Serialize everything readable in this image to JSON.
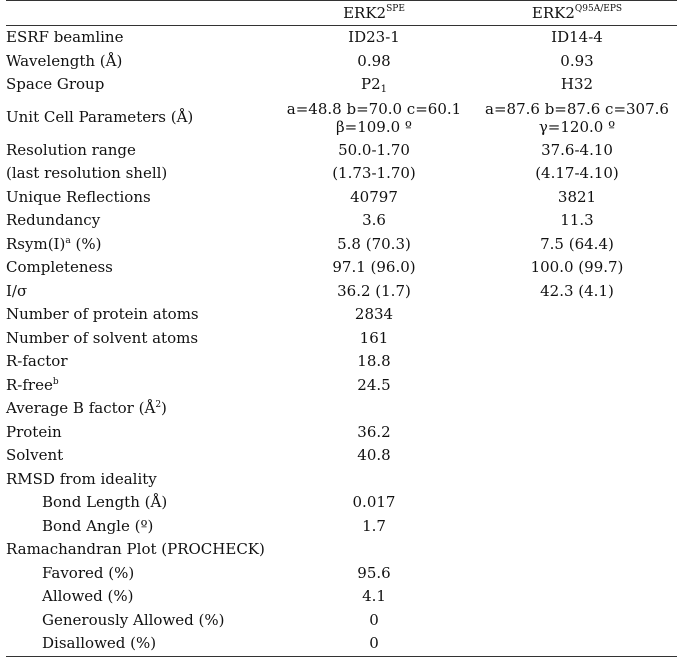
{
  "header": {
    "col1": {
      "base": "ERK2",
      "sup": "SPE"
    },
    "col2": {
      "base": "ERK2",
      "sup": "Q95A/EPS"
    }
  },
  "rows": [
    {
      "label": "ESRF beamline",
      "v1": "ID23-1",
      "v2": "ID14-4"
    },
    {
      "label": "Wavelength (Å)",
      "v1": "0.98",
      "v2": "0.93"
    },
    {
      "label": "Space Group",
      "v1_base": "P2",
      "v1_sub": "1",
      "v2": "H32"
    },
    {
      "label": "Unit Cell Parameters (Å)",
      "v1_line1": "a=48.8 b=70.0 c=60.1",
      "v1_line2": "β=109.0 º",
      "v2_line1": "a=87.6 b=87.6 c=307.6",
      "v2_line2": "γ=120.0 º"
    },
    {
      "label": "Resolution range",
      "v1": "50.0-1.70",
      "v2": "37.6-4.10"
    },
    {
      "label": "(last resolution shell)",
      "v1": "(1.73-1.70)",
      "v2": "(4.17-4.10)"
    },
    {
      "label": "Unique Reflections",
      "v1": "40797",
      "v2": "3821"
    },
    {
      "label": "Redundancy",
      "v1": "3.6",
      "v2": "11.3"
    },
    {
      "label_base": "Rsym(I)",
      "label_sup": "a",
      "label_tail": " (%)",
      "v1": "5.8 (70.3)",
      "v2": "7.5 (64.4)"
    },
    {
      "label": "Completeness",
      "v1": "97.1 (96.0)",
      "v2": "100.0 (99.7)"
    },
    {
      "label": "I/σ",
      "v1": "36.2 (1.7)",
      "v2": "42.3 (4.1)"
    },
    {
      "label": "Number of protein atoms",
      "v1": "2834"
    },
    {
      "label": "Number of solvent atoms",
      "v1": "161"
    },
    {
      "label": "R-factor",
      "v1": "18.8"
    },
    {
      "label_base": "R-free",
      "label_sup": "b",
      "v1": "24.5"
    },
    {
      "label_base": "Average B factor (Å",
      "label_sup": "2",
      "label_tail": ")"
    },
    {
      "label": "Protein",
      "v1": "36.2"
    },
    {
      "label": "Solvent",
      "v1": "40.8"
    },
    {
      "label": "RMSD from ideality"
    },
    {
      "label": "Bond Length (Å)",
      "v1": "0.017"
    },
    {
      "label": "Bond Angle (º)",
      "v1": "1.7"
    },
    {
      "label": "Ramachandran Plot (PROCHECK)"
    },
    {
      "label": "Favored (%)",
      "v1": "95.6"
    },
    {
      "label": "Allowed (%)",
      "v1": "4.1"
    },
    {
      "label": "Generously Allowed (%)",
      "v1": "0"
    },
    {
      "label": "Disallowed (%)",
      "v1": "0"
    }
  ]
}
